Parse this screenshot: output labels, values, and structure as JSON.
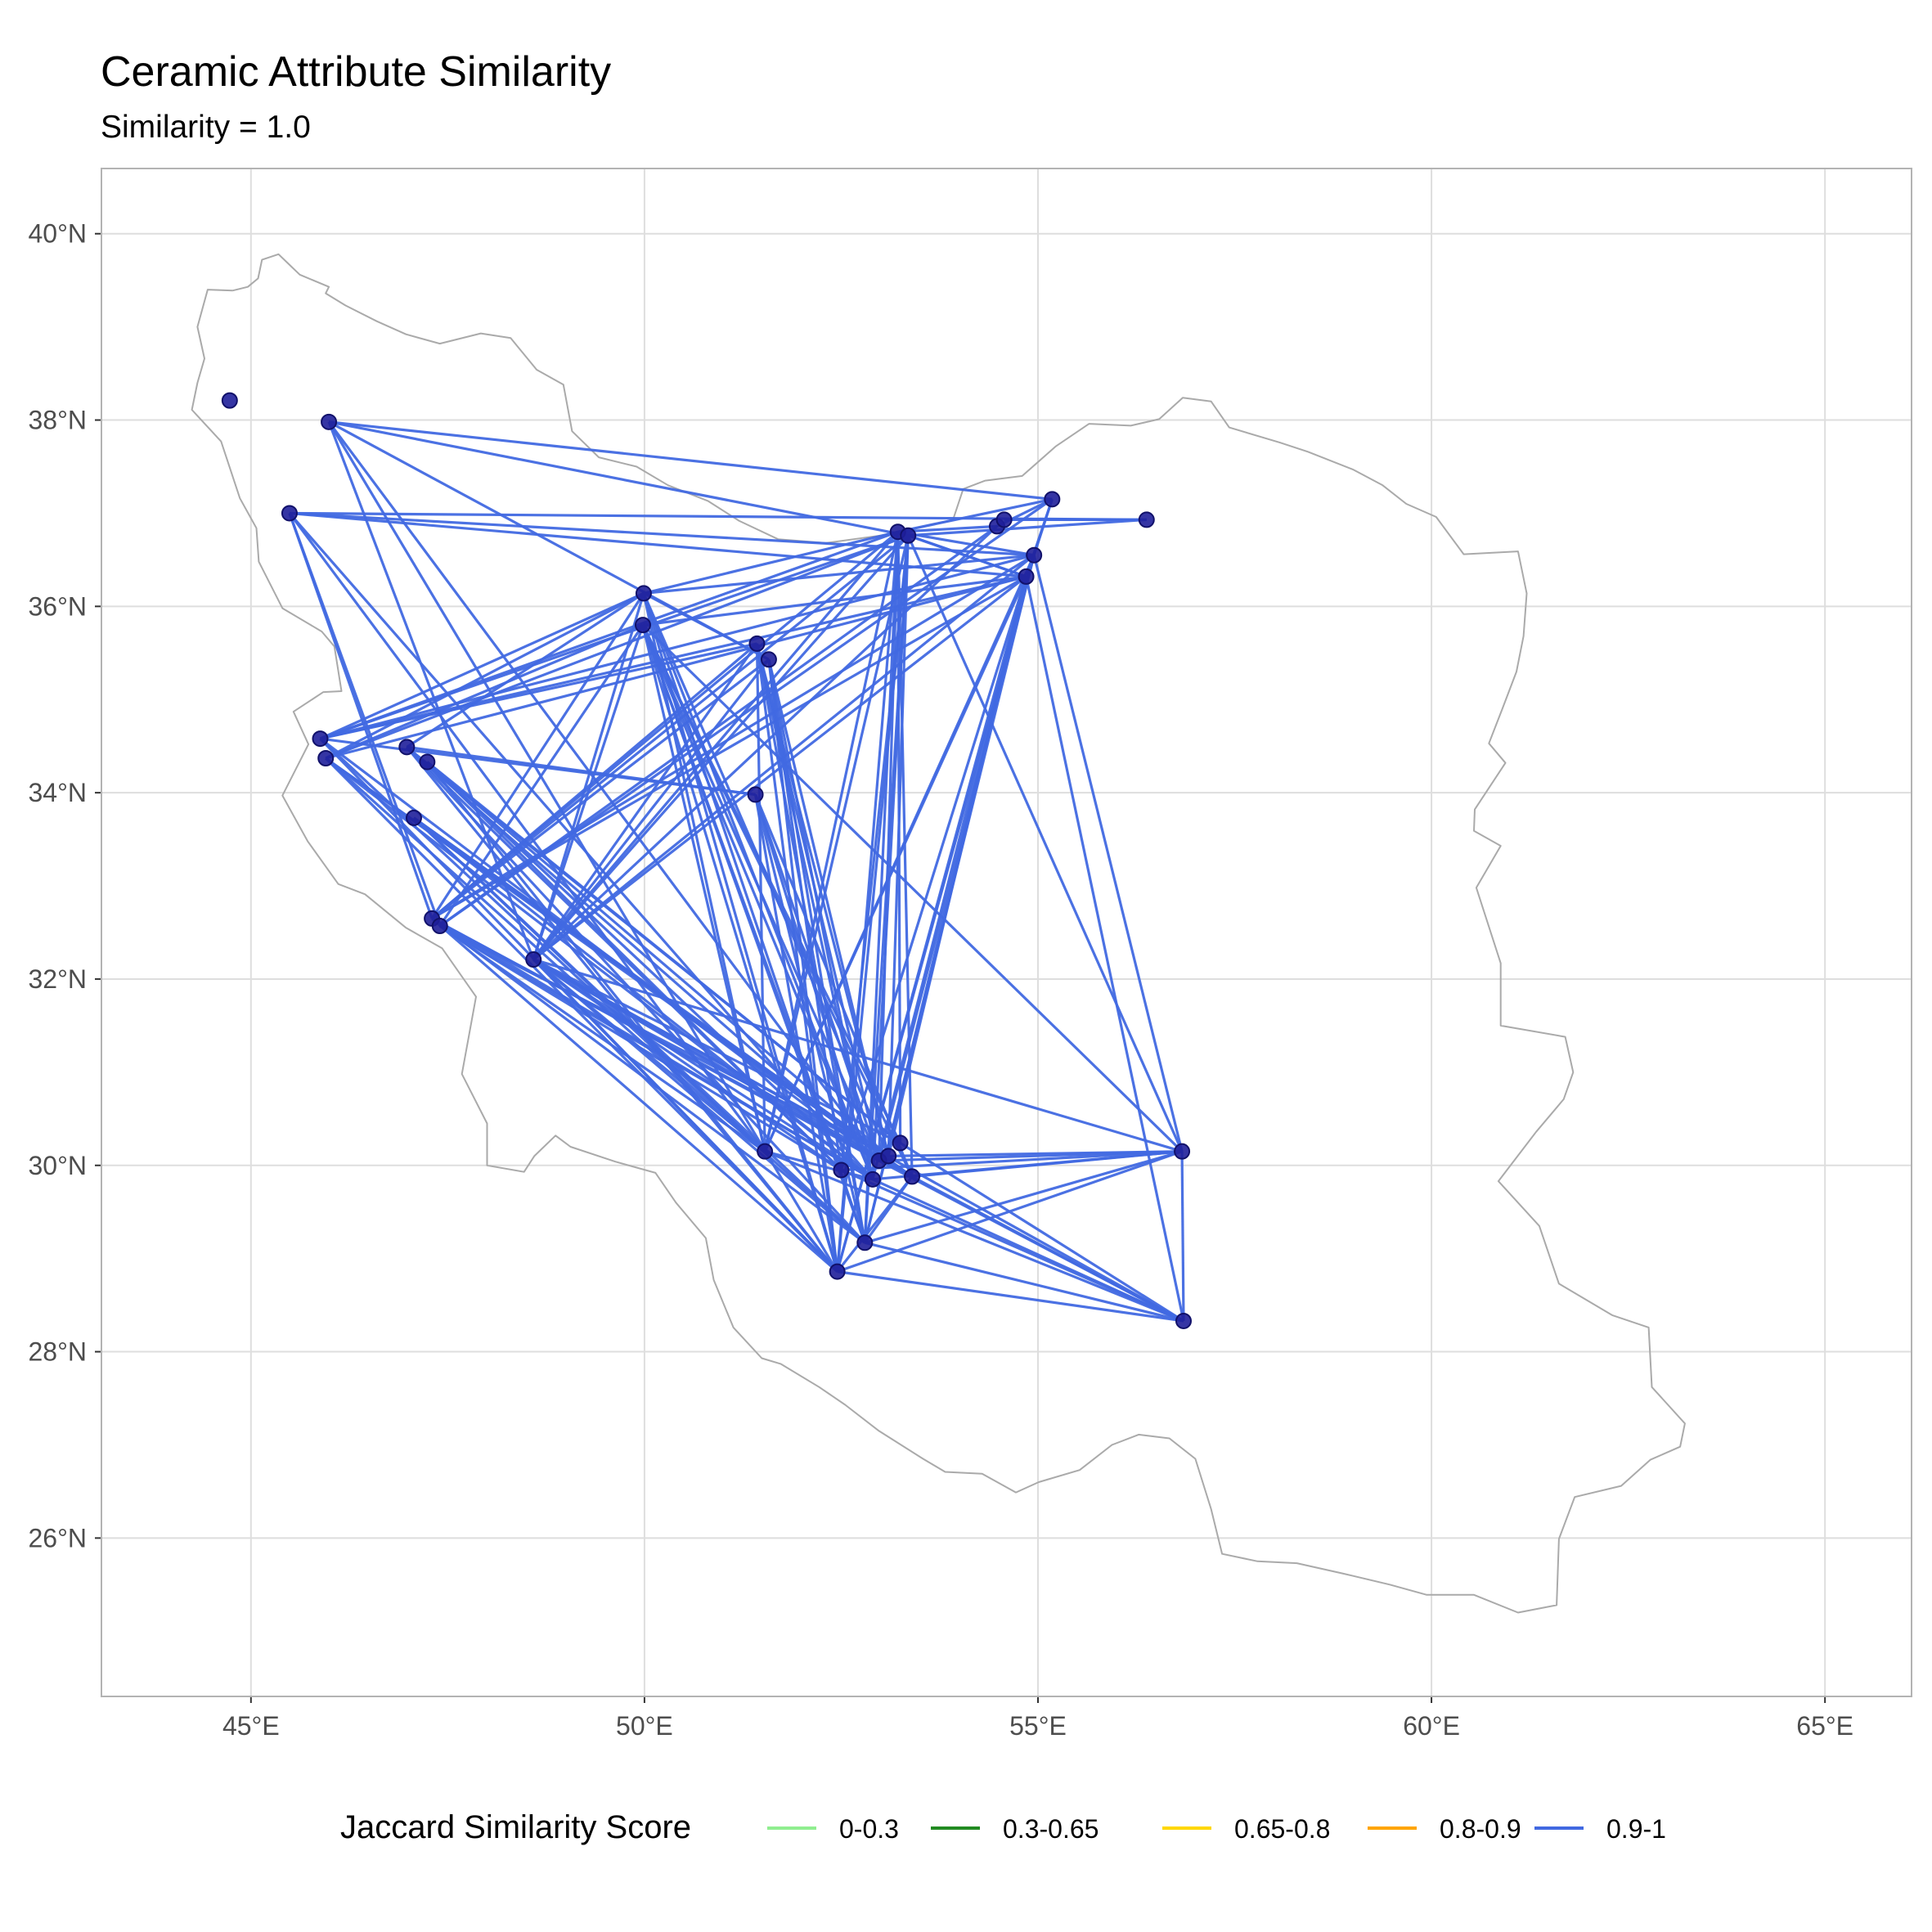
{
  "title": "Ceramic Attribute Similarity",
  "subtitle": "Similarity = 1.0",
  "chart_data": {
    "type": "map",
    "title": "Ceramic Attribute Similarity",
    "subtitle": "Similarity = 1.0",
    "xlabel": "",
    "ylabel": "",
    "xlim": [
      43.1,
      66.1
    ],
    "ylim": [
      24.3,
      40.7
    ],
    "x_ticks": [
      45,
      50,
      55,
      60,
      65
    ],
    "y_ticks": [
      26,
      28,
      30,
      32,
      34,
      36,
      38,
      40
    ],
    "x_tick_labels": [
      "45°E",
      "50°E",
      "55°E",
      "60°E",
      "65°E"
    ],
    "y_tick_labels": [
      "26°N",
      "28°N",
      "30°N",
      "32°N",
      "34°N",
      "36°N",
      "38°N",
      "40°N"
    ],
    "grid": true,
    "legend": {
      "position": "bottom",
      "title": "Jaccard Similarity Score",
      "entries": [
        {
          "label": "0-0.3",
          "color": "#90ee90"
        },
        {
          "label": "0.3-0.65",
          "color": "#228b22"
        },
        {
          "label": "0.65-0.8",
          "color": "#ffd700"
        },
        {
          "label": "0.8-0.9",
          "color": "#ffa500"
        },
        {
          "label": "0.9-1",
          "color": "#4169e1"
        }
      ]
    },
    "edge_color": "#4169e1",
    "point_color": "#1f1f9a",
    "outline_color": "#aaaaaa",
    "sites": [
      {
        "id": "s01",
        "lon": 44.73,
        "lat": 38.21
      },
      {
        "id": "s02",
        "lon": 45.99,
        "lat": 37.98
      },
      {
        "id": "s03",
        "lon": 45.49,
        "lat": 37.0
      },
      {
        "id": "s04",
        "lon": 45.88,
        "lat": 34.58
      },
      {
        "id": "s05",
        "lon": 45.95,
        "lat": 34.37
      },
      {
        "id": "s06",
        "lon": 46.98,
        "lat": 34.49
      },
      {
        "id": "s07",
        "lon": 47.07,
        "lat": 33.73
      },
      {
        "id": "s08",
        "lon": 47.24,
        "lat": 34.33
      },
      {
        "id": "s09",
        "lon": 47.3,
        "lat": 32.65
      },
      {
        "id": "s10",
        "lon": 47.4,
        "lat": 32.57
      },
      {
        "id": "s11",
        "lon": 48.59,
        "lat": 32.21
      },
      {
        "id": "s12",
        "lon": 49.99,
        "lat": 36.14
      },
      {
        "id": "s13",
        "lon": 49.98,
        "lat": 35.8
      },
      {
        "id": "s14",
        "lon": 51.43,
        "lat": 35.6
      },
      {
        "id": "s15",
        "lon": 51.58,
        "lat": 35.43
      },
      {
        "id": "s16",
        "lon": 51.41,
        "lat": 33.98
      },
      {
        "id": "s17",
        "lon": 51.53,
        "lat": 30.15
      },
      {
        "id": "s18",
        "lon": 52.45,
        "lat": 28.86
      },
      {
        "id": "s19",
        "lon": 52.8,
        "lat": 29.17
      },
      {
        "id": "s20",
        "lon": 52.9,
        "lat": 29.85
      },
      {
        "id": "s21",
        "lon": 52.98,
        "lat": 30.05
      },
      {
        "id": "s22",
        "lon": 53.1,
        "lat": 30.1
      },
      {
        "id": "s23",
        "lon": 53.25,
        "lat": 30.24
      },
      {
        "id": "s24",
        "lon": 53.4,
        "lat": 29.88
      },
      {
        "id": "s25",
        "lon": 52.5,
        "lat": 29.95
      },
      {
        "id": "s26",
        "lon": 53.22,
        "lat": 36.8
      },
      {
        "id": "s27",
        "lon": 53.35,
        "lat": 36.76
      },
      {
        "id": "s28",
        "lon": 54.48,
        "lat": 36.86
      },
      {
        "id": "s29",
        "lon": 54.57,
        "lat": 36.93
      },
      {
        "id": "s30",
        "lon": 55.18,
        "lat": 37.15
      },
      {
        "id": "s31",
        "lon": 56.38,
        "lat": 36.93
      },
      {
        "id": "s32",
        "lon": 54.95,
        "lat": 36.55
      },
      {
        "id": "s33",
        "lon": 54.85,
        "lat": 36.32
      },
      {
        "id": "s34",
        "lon": 56.83,
        "lat": 30.15
      },
      {
        "id": "s35",
        "lon": 56.85,
        "lat": 28.33
      }
    ],
    "edges": [
      [
        "s02",
        "s30"
      ],
      [
        "s02",
        "s27"
      ],
      [
        "s02",
        "s15"
      ],
      [
        "s02",
        "s18"
      ],
      [
        "s02",
        "s21"
      ],
      [
        "s02",
        "s11"
      ],
      [
        "s03",
        "s31"
      ],
      [
        "s03",
        "s32"
      ],
      [
        "s03",
        "s33"
      ],
      [
        "s03",
        "s10"
      ],
      [
        "s03",
        "s17"
      ],
      [
        "s03",
        "s20"
      ],
      [
        "s03",
        "s09"
      ],
      [
        "s04",
        "s12"
      ],
      [
        "s04",
        "s26"
      ],
      [
        "s04",
        "s32"
      ],
      [
        "s04",
        "s33"
      ],
      [
        "s04",
        "s17"
      ],
      [
        "s04",
        "s18"
      ],
      [
        "s04",
        "s21"
      ],
      [
        "s04",
        "s14"
      ],
      [
        "s04",
        "s27"
      ],
      [
        "s04",
        "s16"
      ],
      [
        "s05",
        "s13"
      ],
      [
        "s05",
        "s27"
      ],
      [
        "s05",
        "s33"
      ],
      [
        "s05",
        "s19"
      ],
      [
        "s05",
        "s20"
      ],
      [
        "s05",
        "s22"
      ],
      [
        "s05",
        "s24"
      ],
      [
        "s05",
        "s12"
      ],
      [
        "s05",
        "s18"
      ],
      [
        "s06",
        "s16"
      ],
      [
        "s06",
        "s18"
      ],
      [
        "s06",
        "s19"
      ],
      [
        "s06",
        "s21"
      ],
      [
        "s06",
        "s23"
      ],
      [
        "s06",
        "s12"
      ],
      [
        "s06",
        "s25"
      ],
      [
        "s07",
        "s19"
      ],
      [
        "s07",
        "s17"
      ],
      [
        "s07",
        "s22"
      ],
      [
        "s07",
        "s24"
      ],
      [
        "s07",
        "s20"
      ],
      [
        "s08",
        "s18"
      ],
      [
        "s08",
        "s20"
      ],
      [
        "s08",
        "s22"
      ],
      [
        "s08",
        "s25"
      ],
      [
        "s08",
        "s23"
      ],
      [
        "s09",
        "s14"
      ],
      [
        "s09",
        "s15"
      ],
      [
        "s09",
        "s26"
      ],
      [
        "s09",
        "s27"
      ],
      [
        "s09",
        "s32"
      ],
      [
        "s09",
        "s33"
      ],
      [
        "s09",
        "s18"
      ],
      [
        "s09",
        "s19"
      ],
      [
        "s09",
        "s20"
      ],
      [
        "s09",
        "s21"
      ],
      [
        "s09",
        "s24"
      ],
      [
        "s09",
        "s12"
      ],
      [
        "s10",
        "s13"
      ],
      [
        "s10",
        "s30"
      ],
      [
        "s10",
        "s28"
      ],
      [
        "s10",
        "s17"
      ],
      [
        "s10",
        "s22"
      ],
      [
        "s10",
        "s25"
      ],
      [
        "s10",
        "s20"
      ],
      [
        "s11",
        "s12"
      ],
      [
        "s11",
        "s14"
      ],
      [
        "s11",
        "s15"
      ],
      [
        "s11",
        "s26"
      ],
      [
        "s11",
        "s27"
      ],
      [
        "s11",
        "s32"
      ],
      [
        "s11",
        "s33"
      ],
      [
        "s11",
        "s17"
      ],
      [
        "s11",
        "s18"
      ],
      [
        "s11",
        "s19"
      ],
      [
        "s11",
        "s20"
      ],
      [
        "s11",
        "s21"
      ],
      [
        "s11",
        "s22"
      ],
      [
        "s11",
        "s23"
      ],
      [
        "s11",
        "s24"
      ],
      [
        "s11",
        "s25"
      ],
      [
        "s11",
        "s34"
      ],
      [
        "s11",
        "s35"
      ],
      [
        "s11",
        "s13"
      ],
      [
        "s11",
        "s28"
      ],
      [
        "s12",
        "s15"
      ],
      [
        "s12",
        "s17"
      ],
      [
        "s12",
        "s18"
      ],
      [
        "s12",
        "s19"
      ],
      [
        "s12",
        "s20"
      ],
      [
        "s12",
        "s22"
      ],
      [
        "s12",
        "s26"
      ],
      [
        "s12",
        "s32"
      ],
      [
        "s13",
        "s17"
      ],
      [
        "s13",
        "s18"
      ],
      [
        "s13",
        "s19"
      ],
      [
        "s13",
        "s20"
      ],
      [
        "s13",
        "s21"
      ],
      [
        "s13",
        "s23"
      ],
      [
        "s13",
        "s24"
      ],
      [
        "s13",
        "s25"
      ],
      [
        "s13",
        "s33"
      ],
      [
        "s13",
        "s34"
      ],
      [
        "s14",
        "s18"
      ],
      [
        "s14",
        "s19"
      ],
      [
        "s14",
        "s20"
      ],
      [
        "s14",
        "s21"
      ],
      [
        "s14",
        "s22"
      ],
      [
        "s14",
        "s17"
      ],
      [
        "s15",
        "s19"
      ],
      [
        "s15",
        "s18"
      ],
      [
        "s15",
        "s20"
      ],
      [
        "s15",
        "s22"
      ],
      [
        "s15",
        "s25"
      ],
      [
        "s16",
        "s18"
      ],
      [
        "s16",
        "s19"
      ],
      [
        "s16",
        "s20"
      ],
      [
        "s16",
        "s21"
      ],
      [
        "s16",
        "s24"
      ],
      [
        "s17",
        "s20"
      ],
      [
        "s17",
        "s26"
      ],
      [
        "s17",
        "s27"
      ],
      [
        "s17",
        "s32"
      ],
      [
        "s17",
        "s33"
      ],
      [
        "s17",
        "s35"
      ],
      [
        "s18",
        "s26"
      ],
      [
        "s18",
        "s27"
      ],
      [
        "s18",
        "s32"
      ],
      [
        "s18",
        "s33"
      ],
      [
        "s18",
        "s34"
      ],
      [
        "s18",
        "s35"
      ],
      [
        "s18",
        "s24"
      ],
      [
        "s19",
        "s26"
      ],
      [
        "s19",
        "s27"
      ],
      [
        "s19",
        "s32"
      ],
      [
        "s19",
        "s33"
      ],
      [
        "s19",
        "s34"
      ],
      [
        "s19",
        "s35"
      ],
      [
        "s19",
        "s24"
      ],
      [
        "s20",
        "s27"
      ],
      [
        "s20",
        "s33"
      ],
      [
        "s20",
        "s35"
      ],
      [
        "s20",
        "s34"
      ],
      [
        "s21",
        "s26"
      ],
      [
        "s21",
        "s32"
      ],
      [
        "s21",
        "s34"
      ],
      [
        "s21",
        "s35"
      ],
      [
        "s22",
        "s27"
      ],
      [
        "s22",
        "s33"
      ],
      [
        "s22",
        "s34"
      ],
      [
        "s23",
        "s26"
      ],
      [
        "s23",
        "s35"
      ],
      [
        "s24",
        "s26"
      ],
      [
        "s24",
        "s34"
      ],
      [
        "s24",
        "s35"
      ],
      [
        "s25",
        "s27"
      ],
      [
        "s25",
        "s33"
      ],
      [
        "s25",
        "s34"
      ],
      [
        "s25",
        "s35"
      ],
      [
        "s26",
        "s28"
      ],
      [
        "s26",
        "s30"
      ],
      [
        "s26",
        "s33"
      ],
      [
        "s26",
        "s32"
      ],
      [
        "s27",
        "s31"
      ],
      [
        "s27",
        "s33"
      ],
      [
        "s27",
        "s34"
      ],
      [
        "s28",
        "s30"
      ],
      [
        "s29",
        "s31"
      ],
      [
        "s30",
        "s33"
      ],
      [
        "s30",
        "s32"
      ],
      [
        "s34",
        "s35"
      ],
      [
        "s32",
        "s34"
      ],
      [
        "s33",
        "s35"
      ]
    ],
    "outline_lonlat": [
      [
        44.77,
        39.39
      ],
      [
        44.96,
        39.43
      ],
      [
        45.09,
        39.52
      ],
      [
        45.14,
        39.72
      ],
      [
        45.35,
        39.78
      ],
      [
        45.46,
        39.69
      ],
      [
        45.62,
        39.56
      ],
      [
        45.99,
        39.43
      ],
      [
        45.95,
        39.36
      ],
      [
        46.2,
        39.23
      ],
      [
        46.6,
        39.06
      ],
      [
        46.97,
        38.92
      ],
      [
        47.4,
        38.82
      ],
      [
        47.92,
        38.93
      ],
      [
        48.3,
        38.88
      ],
      [
        48.63,
        38.54
      ],
      [
        48.97,
        38.38
      ],
      [
        49.08,
        37.88
      ],
      [
        49.42,
        37.6
      ],
      [
        49.9,
        37.5
      ],
      [
        50.3,
        37.3
      ],
      [
        50.81,
        37.13
      ],
      [
        51.2,
        36.92
      ],
      [
        51.7,
        36.72
      ],
      [
        52.3,
        36.68
      ],
      [
        53.0,
        36.76
      ],
      [
        53.61,
        36.87
      ],
      [
        53.92,
        36.93
      ],
      [
        54.05,
        37.26
      ],
      [
        54.33,
        37.35
      ],
      [
        54.8,
        37.4
      ],
      [
        55.23,
        37.72
      ],
      [
        55.65,
        37.96
      ],
      [
        56.18,
        37.94
      ],
      [
        56.54,
        38.01
      ],
      [
        56.84,
        38.24
      ],
      [
        57.2,
        38.2
      ],
      [
        57.43,
        37.92
      ],
      [
        58.07,
        37.76
      ],
      [
        58.43,
        37.66
      ],
      [
        59.0,
        37.47
      ],
      [
        59.38,
        37.3
      ],
      [
        59.68,
        37.1
      ],
      [
        60.06,
        36.96
      ],
      [
        60.41,
        36.56
      ],
      [
        61.1,
        36.59
      ],
      [
        61.21,
        36.14
      ],
      [
        61.17,
        35.68
      ],
      [
        61.08,
        35.3
      ],
      [
        60.9,
        34.9
      ],
      [
        60.73,
        34.53
      ],
      [
        60.94,
        34.32
      ],
      [
        60.55,
        33.82
      ],
      [
        60.54,
        33.59
      ],
      [
        60.88,
        33.43
      ],
      [
        60.57,
        32.98
      ],
      [
        60.88,
        32.17
      ],
      [
        60.88,
        31.5
      ],
      [
        61.7,
        31.38
      ],
      [
        61.8,
        31.0
      ],
      [
        61.68,
        30.71
      ],
      [
        61.33,
        30.36
      ],
      [
        60.85,
        29.83
      ],
      [
        61.37,
        29.35
      ],
      [
        61.62,
        28.73
      ],
      [
        62.3,
        28.39
      ],
      [
        62.76,
        28.26
      ],
      [
        62.8,
        27.62
      ],
      [
        63.22,
        27.23
      ],
      [
        63.16,
        26.98
      ],
      [
        62.78,
        26.84
      ],
      [
        62.41,
        26.56
      ],
      [
        61.82,
        26.44
      ],
      [
        61.62,
        25.99
      ],
      [
        61.59,
        25.28
      ],
      [
        61.1,
        25.2
      ],
      [
        60.54,
        25.39
      ],
      [
        59.94,
        25.39
      ],
      [
        59.47,
        25.5
      ],
      [
        58.87,
        25.62
      ],
      [
        58.29,
        25.73
      ],
      [
        57.79,
        25.75
      ],
      [
        57.34,
        25.83
      ],
      [
        57.2,
        26.31
      ],
      [
        57.0,
        26.85
      ],
      [
        56.67,
        27.07
      ],
      [
        56.28,
        27.11
      ],
      [
        55.94,
        27.0
      ],
      [
        55.53,
        26.73
      ],
      [
        55.01,
        26.6
      ],
      [
        54.72,
        26.49
      ],
      [
        54.29,
        26.69
      ],
      [
        53.82,
        26.71
      ],
      [
        53.54,
        26.85
      ],
      [
        52.98,
        27.15
      ],
      [
        52.55,
        27.43
      ],
      [
        52.22,
        27.62
      ],
      [
        51.73,
        27.87
      ],
      [
        51.49,
        27.93
      ],
      [
        51.13,
        28.26
      ],
      [
        50.88,
        28.77
      ],
      [
        50.78,
        29.22
      ],
      [
        50.4,
        29.6
      ],
      [
        50.14,
        29.92
      ],
      [
        49.63,
        30.04
      ],
      [
        49.06,
        30.2
      ],
      [
        48.87,
        30.32
      ],
      [
        48.6,
        30.1
      ],
      [
        48.47,
        29.93
      ],
      [
        48.0,
        30.0
      ],
      [
        48.0,
        30.45
      ],
      [
        47.68,
        30.98
      ],
      [
        47.86,
        31.81
      ],
      [
        47.43,
        32.33
      ],
      [
        46.97,
        32.55
      ],
      [
        46.45,
        32.91
      ],
      [
        46.11,
        33.02
      ],
      [
        45.72,
        33.48
      ],
      [
        45.4,
        33.97
      ],
      [
        45.73,
        34.52
      ],
      [
        45.54,
        34.87
      ],
      [
        45.92,
        35.08
      ],
      [
        46.15,
        35.09
      ],
      [
        46.06,
        35.57
      ],
      [
        45.9,
        35.73
      ],
      [
        45.4,
        35.98
      ],
      [
        45.1,
        36.48
      ],
      [
        45.07,
        36.84
      ],
      [
        44.86,
        37.16
      ],
      [
        44.62,
        37.77
      ],
      [
        44.25,
        38.11
      ],
      [
        44.32,
        38.4
      ],
      [
        44.41,
        38.66
      ],
      [
        44.32,
        39.0
      ],
      [
        44.45,
        39.4
      ],
      [
        44.77,
        39.39
      ]
    ]
  }
}
